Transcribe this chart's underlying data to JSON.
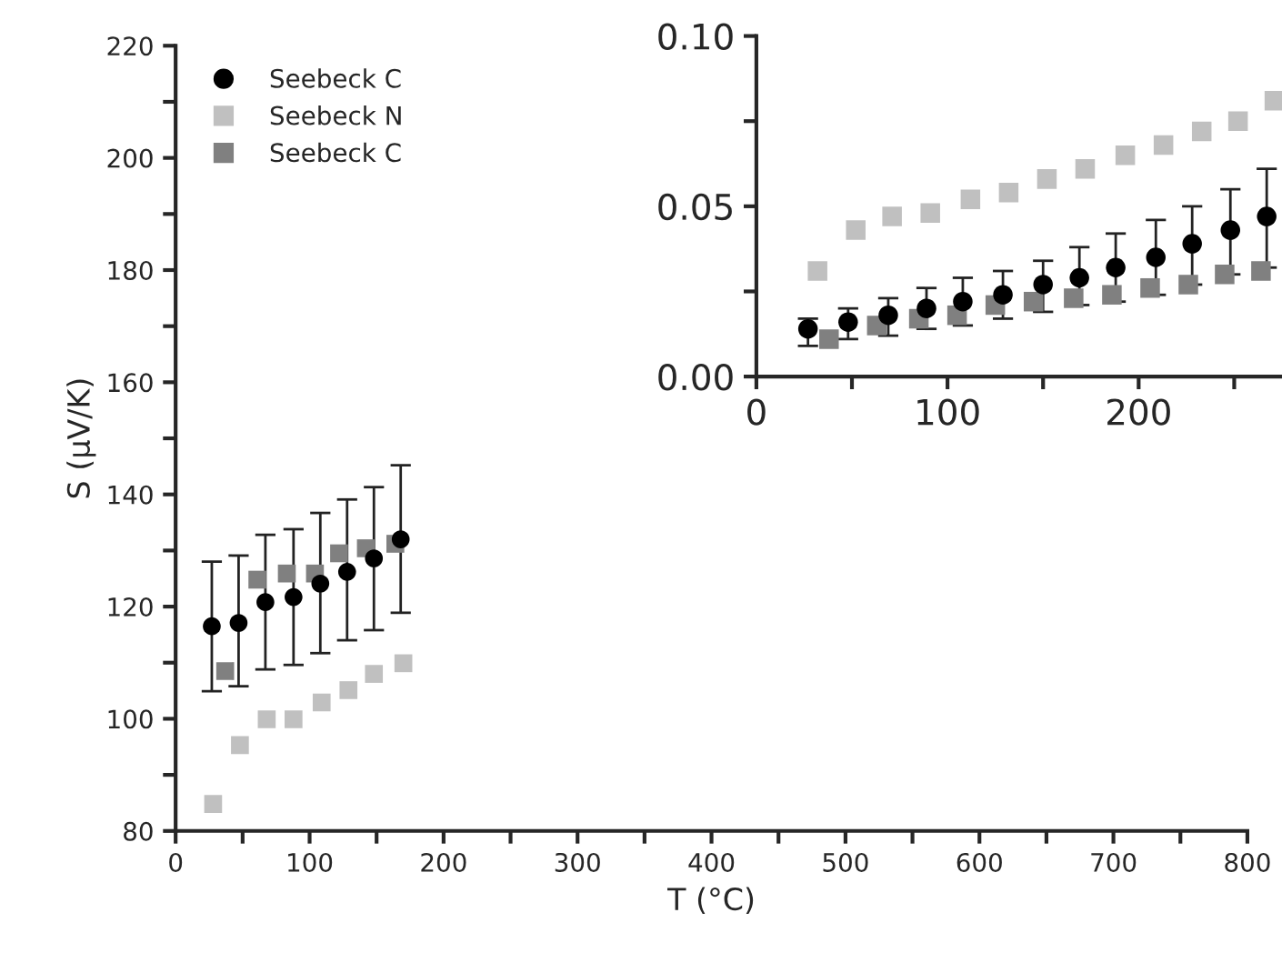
{
  "chart_data": [
    {
      "type": "scatter",
      "xlabel": "T (°C)",
      "ylabel": "S (µV/K)",
      "xlim": [
        0,
        800
      ],
      "ylim": [
        80,
        220
      ],
      "xticks": [
        0,
        {
          "value": 50,
          "label": null
        },
        100,
        {
          "value": 150,
          "label": null
        },
        200,
        {
          "value": 250,
          "label": null
        },
        300,
        {
          "value": 350,
          "label": null
        },
        400,
        {
          "value": 450,
          "label": null
        },
        500,
        {
          "value": 550,
          "label": null
        },
        600,
        {
          "value": 650,
          "label": null
        },
        700,
        {
          "value": 750,
          "label": null
        },
        800
      ],
      "yticks": [
        80,
        {
          "value": 90,
          "label": null
        },
        100,
        {
          "value": 110,
          "label": null
        },
        120,
        {
          "value": 130,
          "label": null
        },
        140,
        {
          "value": 150,
          "label": null
        },
        160,
        {
          "value": 170,
          "label": null
        },
        180,
        {
          "value": 190,
          "label": null
        },
        200,
        {
          "value": 210,
          "label": null
        },
        220
      ],
      "grid": false,
      "legend": "top left",
      "series": [
        {
          "name": "Seebeck C",
          "color": "#000000",
          "marker": "circle",
          "x": [
            27,
            47,
            67,
            88,
            108,
            128,
            148,
            168
          ],
          "values": [
            116.5,
            117.1,
            120.8,
            121.7,
            124.1,
            126.2,
            128.6,
            132.0
          ],
          "errors": [
            [
              104.9,
              128.0
            ],
            [
              105.8,
              129.1
            ],
            [
              108.8,
              132.8
            ],
            [
              109.6,
              133.8
            ],
            [
              111.7,
              136.7
            ],
            [
              114.0,
              139.1
            ],
            [
              115.8,
              141.3
            ],
            [
              118.9,
              145.2
            ]
          ]
        },
        {
          "name": "Seebeck N",
          "color": "#c0c0c0",
          "marker": "square",
          "x": [
            28,
            48,
            68,
            88,
            109,
            129,
            148,
            170
          ],
          "values": [
            84.8,
            95.3,
            99.9,
            99.9,
            102.9,
            105.1,
            108.0,
            109.9
          ]
        },
        {
          "name": "Seebeck C",
          "color": "#808080",
          "marker": "square",
          "x": [
            37,
            61,
            83,
            104,
            122,
            142,
            164
          ],
          "values": [
            108.5,
            124.8,
            125.9,
            125.9,
            129.5,
            130.4,
            131.2
          ]
        }
      ]
    },
    {
      "type": "scatter",
      "xlim": [
        0,
        275
      ],
      "ylim": [
        0,
        0.1
      ],
      "xticks": [
        0,
        {
          "value": 50,
          "label": null
        },
        100,
        {
          "value": 150,
          "label": null
        },
        200,
        {
          "value": 250,
          "label": null
        }
      ],
      "yticks": [
        {
          "value": 0,
          "label": "0.00"
        },
        {
          "value": 0.025,
          "label": null
        },
        0.05,
        {
          "value": 0.075,
          "label": null
        },
        {
          "value": 0.1,
          "label": "0.10"
        }
      ],
      "grid": false,
      "series": [
        {
          "color": "#c0c0c0",
          "marker": "square",
          "x": [
            32,
            52,
            71,
            91,
            112,
            132,
            152,
            172,
            193,
            213,
            233,
            252,
            271
          ],
          "values": [
            0.031,
            0.043,
            0.047,
            0.048,
            0.052,
            0.054,
            0.058,
            0.061,
            0.065,
            0.068,
            0.072,
            0.075,
            0.081
          ]
        },
        {
          "color": "#000000",
          "marker": "circle",
          "x": [
            27,
            48,
            69,
            89,
            108,
            129,
            150,
            169,
            188,
            209,
            228,
            248,
            267
          ],
          "values": [
            0.014,
            0.016,
            0.018,
            0.02,
            0.022,
            0.024,
            0.027,
            0.029,
            0.032,
            0.035,
            0.039,
            0.043,
            0.047
          ],
          "errors": [
            [
              0.009,
              0.017
            ],
            [
              0.011,
              0.02
            ],
            [
              0.012,
              0.023
            ],
            [
              0.014,
              0.026
            ],
            [
              0.015,
              0.029
            ],
            [
              0.017,
              0.031
            ],
            [
              0.019,
              0.034
            ],
            [
              0.021,
              0.038
            ],
            [
              0.022,
              0.042
            ],
            [
              0.024,
              0.046
            ],
            [
              0.027,
              0.05
            ],
            [
              0.03,
              0.055
            ],
            [
              0.032,
              0.061
            ]
          ]
        },
        {
          "color": "#808080",
          "marker": "square",
          "x": [
            38,
            63,
            85,
            105,
            125,
            145,
            166,
            186,
            206,
            226,
            245,
            264
          ],
          "values": [
            0.011,
            0.015,
            0.017,
            0.018,
            0.021,
            0.022,
            0.023,
            0.024,
            0.026,
            0.027,
            0.03,
            0.031
          ]
        }
      ]
    }
  ]
}
